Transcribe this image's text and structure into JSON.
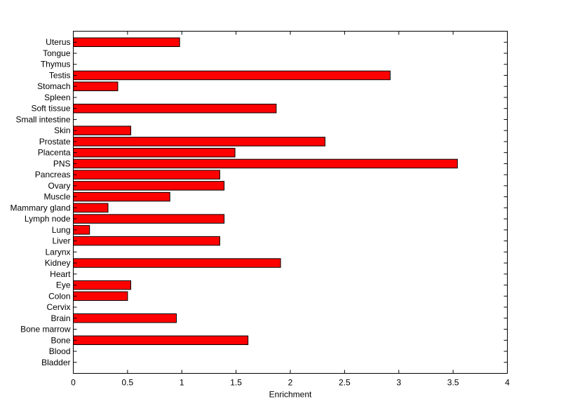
{
  "chart_data": {
    "type": "bar",
    "orientation": "horizontal",
    "title": "",
    "xlabel": "Enrichment",
    "ylabel": "",
    "xlim": [
      0,
      4
    ],
    "xticks": [
      0,
      0.5,
      1,
      1.5,
      2,
      2.5,
      3,
      3.5,
      4
    ],
    "xtick_labels": [
      "0",
      "0.5",
      "1",
      "1.5",
      "2",
      "2.5",
      "3",
      "3.5",
      "4"
    ],
    "grid": false,
    "bar_color": "#ff0000",
    "categories": [
      "Bladder",
      "Blood",
      "Bone",
      "Bone marrow",
      "Brain",
      "Cervix",
      "Colon",
      "Eye",
      "Heart",
      "Kidney",
      "Larynx",
      "Liver",
      "Lung",
      "Lymph node",
      "Mammary gland",
      "Muscle",
      "Ovary",
      "Pancreas",
      "PNS",
      "Placenta",
      "Prostate",
      "Skin",
      "Small intestine",
      "Soft tissue",
      "Spleen",
      "Stomach",
      "Testis",
      "Thymus",
      "Tongue",
      "Uterus"
    ],
    "values": [
      0,
      0,
      1.61,
      0,
      0.95,
      0,
      0.5,
      0.53,
      0,
      1.91,
      0,
      1.35,
      0.15,
      1.39,
      0.32,
      0.89,
      1.39,
      1.35,
      3.54,
      1.49,
      2.32,
      0.53,
      0,
      1.87,
      0,
      0.41,
      2.92,
      0,
      0,
      0.98
    ]
  }
}
